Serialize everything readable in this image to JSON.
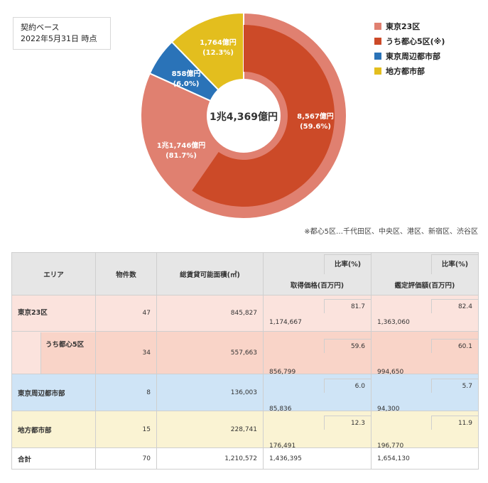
{
  "basis": {
    "line1": "契約ベース",
    "line2": "2022年5月31日 時点"
  },
  "chart_data": {
    "type": "pie",
    "center_label": "1兆4,369億円",
    "outer_ring": [
      {
        "name": "東京23区",
        "value": 11746,
        "label": "1兆1,746億円",
        "pct": "(81.7%)",
        "color": "#e08070"
      },
      {
        "name": "東京周辺都市部",
        "value": 858,
        "label": "858億円",
        "pct": "(6.0%)",
        "color": "#2a73b8"
      },
      {
        "name": "地方都市部",
        "value": 1764,
        "label": "1,764億円",
        "pct": "(12.3%)",
        "color": "#e3be1e"
      }
    ],
    "inner_ring": [
      {
        "name": "うち都心5区(※)",
        "value": 8567,
        "label": "8,567億円",
        "pct": "(59.6%)",
        "color": "#cc4a28"
      }
    ],
    "legend": [
      {
        "name": "東京23区",
        "color": "#e08070"
      },
      {
        "name": "うち都心5区(※)",
        "color": "#cc4a28"
      },
      {
        "name": "東京周辺都市部",
        "color": "#2a73b8"
      },
      {
        "name": "地方都市部",
        "color": "#e3be1e"
      }
    ]
  },
  "footnote": "※都心5区…千代田区、中央区、港区、新宿区、渋谷区",
  "table": {
    "headers": {
      "area": "エリア",
      "count": "物件数",
      "floor": "総賃貸可能面積(㎡)",
      "acq": "取得価格(百万円)",
      "appr": "鑑定評価額(百万円)",
      "ratio": "比率(%)"
    },
    "rows": [
      {
        "area": "東京23区",
        "count": "47",
        "floor": "845,827",
        "acq": "1,174,667",
        "acq_ratio": "81.7",
        "appr": "1,363,060",
        "appr_ratio": "82.4"
      },
      {
        "area": "うち都心5区",
        "count": "34",
        "floor": "557,663",
        "acq": "856,799",
        "acq_ratio": "59.6",
        "appr": "994,650",
        "appr_ratio": "60.1"
      },
      {
        "area": "東京周辺都市部",
        "count": "8",
        "floor": "136,003",
        "acq": "85,836",
        "acq_ratio": "6.0",
        "appr": "94,300",
        "appr_ratio": "5.7"
      },
      {
        "area": "地方都市部",
        "count": "15",
        "floor": "228,741",
        "acq": "176,491",
        "acq_ratio": "12.3",
        "appr": "196,770",
        "appr_ratio": "11.9"
      },
      {
        "area": "合計",
        "count": "70",
        "floor": "1,210,572",
        "acq": "1,436,395",
        "acq_ratio": "",
        "appr": "1,654,130",
        "appr_ratio": ""
      }
    ]
  }
}
